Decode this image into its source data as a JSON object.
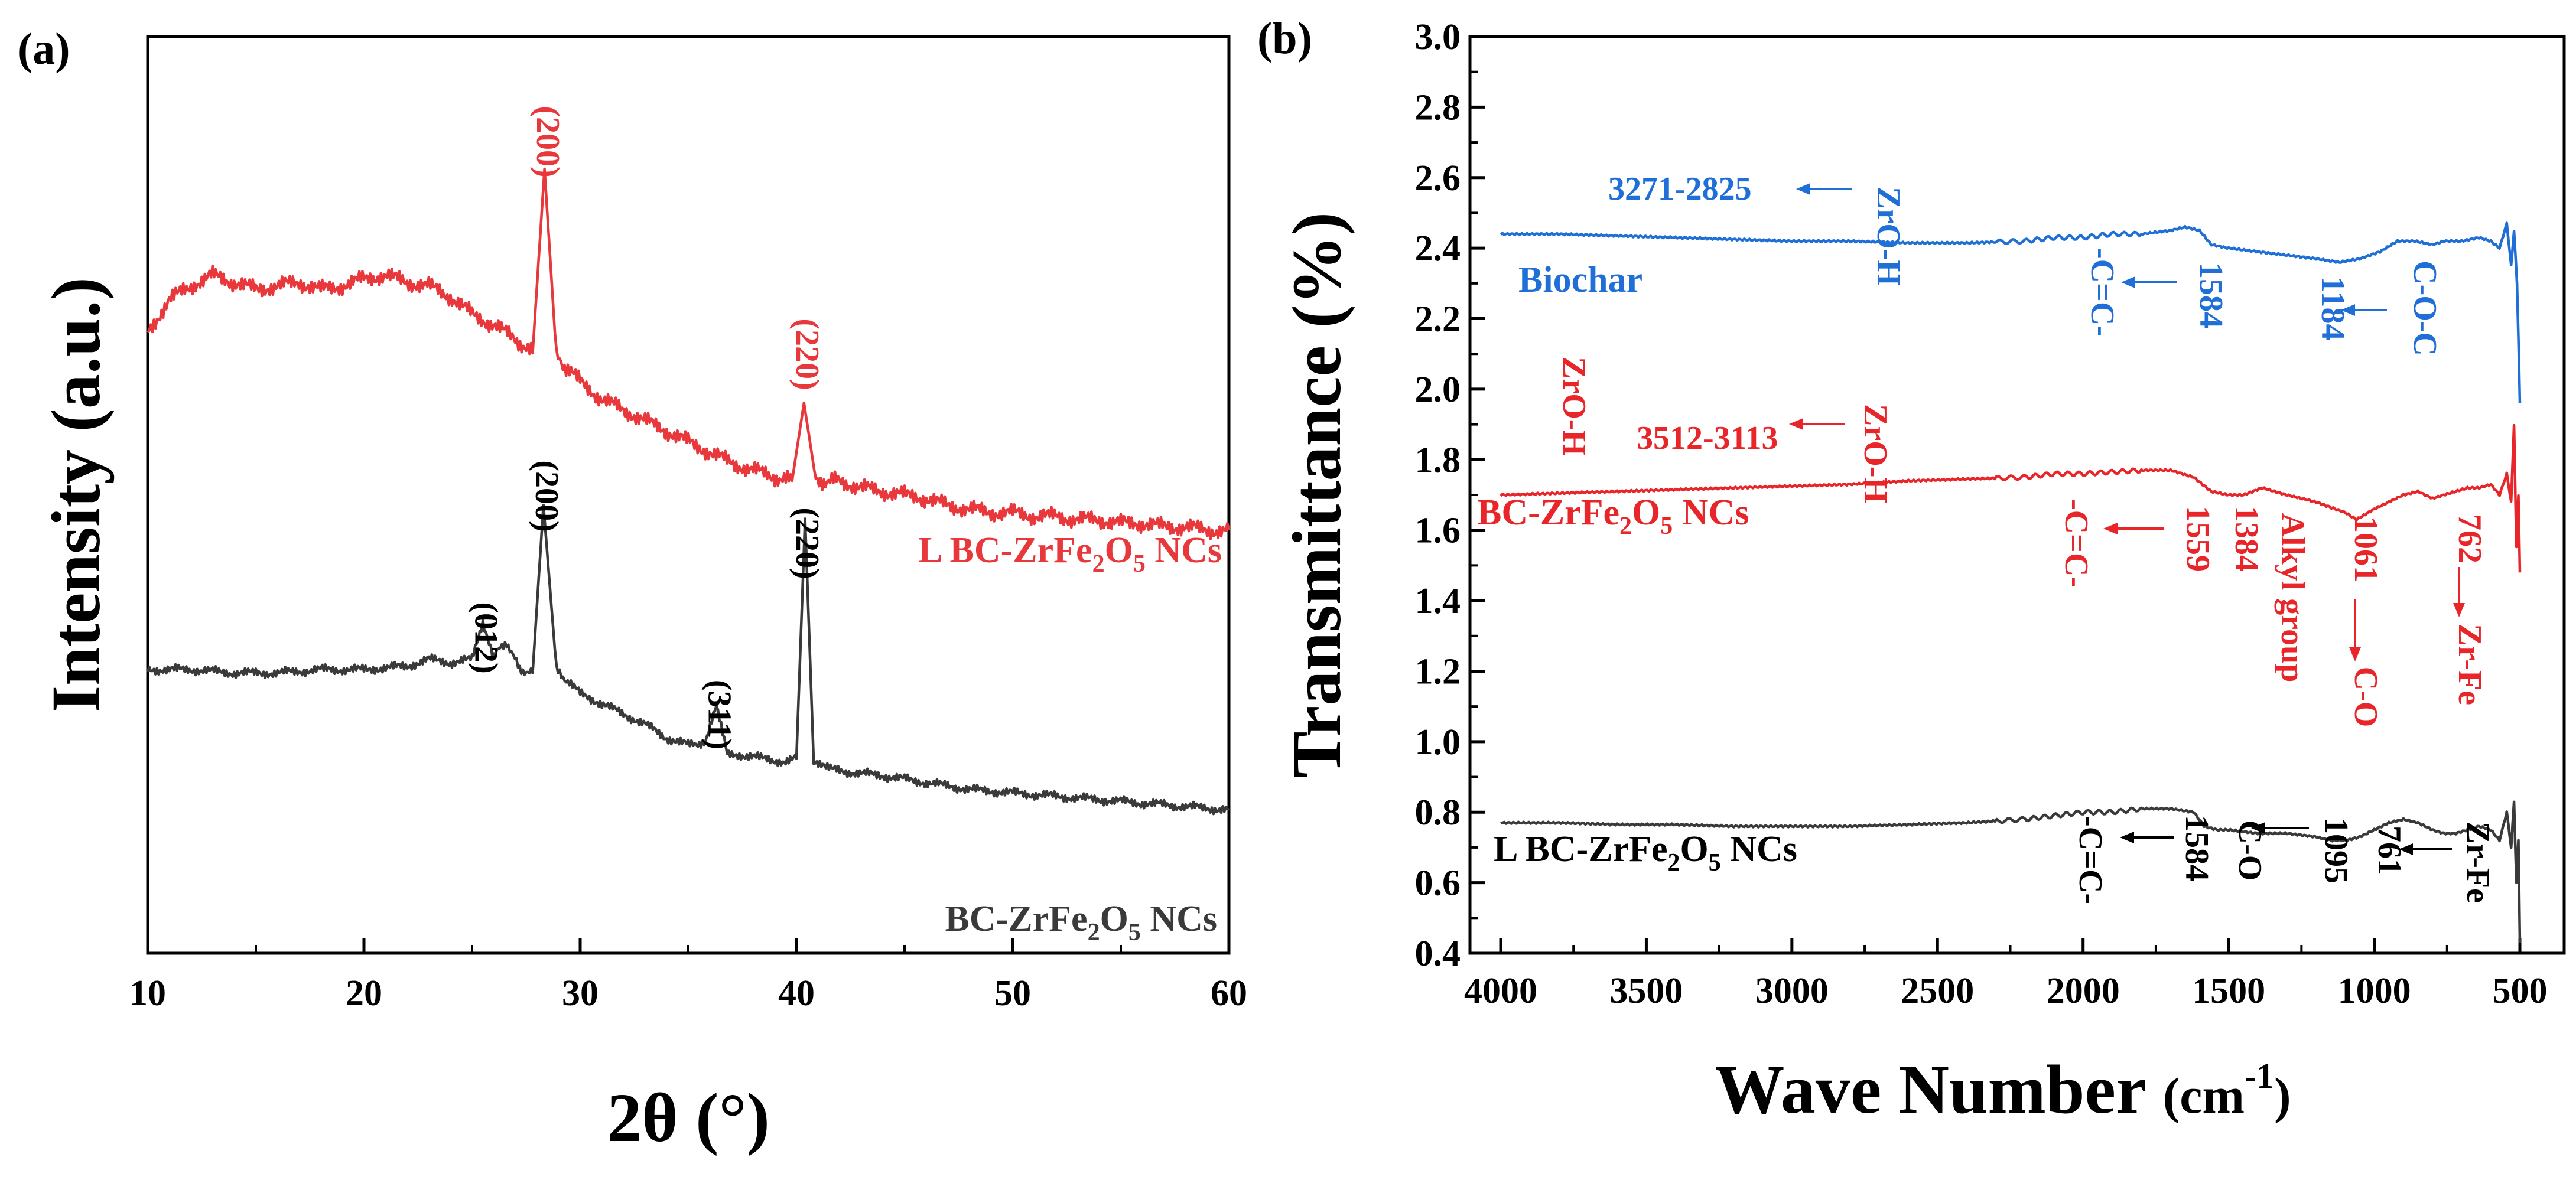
{
  "chart_data": [
    {
      "panel": "(a)",
      "type": "line",
      "title": "",
      "xlabel": "2θ (°)",
      "ylabel": "Intensity (a.u.)",
      "xlim": [
        10,
        60
      ],
      "xticks": [
        "10",
        "20",
        "30",
        "40",
        "50",
        "60"
      ],
      "series": [
        {
          "name": "L BC-ZrFe2O5 NCs",
          "color": "#e8383b",
          "x": [
            10,
            11,
            12,
            13,
            14,
            15,
            16,
            17,
            18,
            19,
            20,
            21,
            22,
            23,
            24,
            25,
            26,
            27,
            27.8,
            28.35,
            28.9,
            29.5,
            30,
            31,
            32,
            33,
            34,
            35,
            36,
            37,
            38,
            39,
            39.8,
            40.35,
            40.9,
            42,
            43,
            44,
            45,
            46,
            47,
            48,
            49,
            50,
            51,
            52,
            53,
            54,
            55,
            56,
            57,
            58,
            59,
            60
          ],
          "y": [
            0.53,
            0.62,
            0.66,
            0.69,
            0.67,
            0.65,
            0.66,
            0.67,
            0.65,
            0.66,
            0.68,
            0.69,
            0.67,
            0.66,
            0.63,
            0.58,
            0.55,
            0.51,
            0.47,
            0.99,
            0.46,
            0.42,
            0.39,
            0.34,
            0.31,
            0.28,
            0.25,
            0.22,
            0.19,
            0.16,
            0.14,
            0.12,
            0.11,
            0.33,
            0.11,
            0.11,
            0.09,
            0.08,
            0.07,
            0.06,
            0.04,
            0.03,
            0.02,
            0.02,
            0.01,
            0.01,
            0.0,
            0.0,
            -0.01,
            -0.01,
            -0.02,
            -0.02,
            -0.03,
            -0.03
          ]
        },
        {
          "name": "BC-ZrFe2O5 NCs",
          "color": "#3a3a3a",
          "x": [
            10,
            12,
            14,
            16,
            18,
            20,
            22,
            23,
            24,
            25,
            25.5,
            26,
            26.6,
            27.2,
            27.8,
            28.3,
            28.9,
            29.5,
            30,
            31,
            32,
            33,
            34,
            35,
            35.8,
            36.3,
            36.8,
            37.5,
            38.5,
            39.5,
            40.0,
            40.4,
            40.8,
            41.5,
            42.5,
            44,
            46,
            48,
            50,
            52,
            54,
            56,
            58,
            60
          ],
          "y": [
            0.58,
            0.58,
            0.57,
            0.57,
            0.58,
            0.58,
            0.59,
            0.61,
            0.6,
            0.61,
            0.72,
            0.62,
            0.66,
            0.58,
            0.57,
            1.06,
            0.58,
            0.54,
            0.51,
            0.48,
            0.45,
            0.42,
            0.38,
            0.36,
            0.37,
            0.47,
            0.34,
            0.33,
            0.32,
            0.31,
            0.32,
            1.02,
            0.31,
            0.29,
            0.28,
            0.27,
            0.25,
            0.23,
            0.22,
            0.21,
            0.2,
            0.19,
            0.18,
            0.17
          ]
        }
      ],
      "peak_labels": [
        {
          "text": "(200)",
          "x": 28.35,
          "series": "L BC-ZrFe2O5 NCs"
        },
        {
          "text": "(220)",
          "x": 40.35,
          "series": "L BC-ZrFe2O5 NCs"
        },
        {
          "text": "(012)",
          "x": 25.5,
          "series": "BC-ZrFe2O5 NCs"
        },
        {
          "text": "(200)",
          "x": 28.3,
          "series": "BC-ZrFe2O5 NCs"
        },
        {
          "text": "(311)",
          "x": 36.3,
          "series": "BC-ZrFe2O5 NCs"
        },
        {
          "text": "(220)",
          "x": 40.35,
          "series": "BC-ZrFe2O5 NCs"
        }
      ]
    },
    {
      "panel": "(b)",
      "type": "line",
      "title": "",
      "xlabel": "Wave Number (cm-1)",
      "ylabel": "Transmittance (%)",
      "xlim": [
        4000,
        500
      ],
      "ylim": [
        0.4,
        3.0
      ],
      "xticks": [
        "4000",
        "3500",
        "3000",
        "2500",
        "2000",
        "1500",
        "1000",
        "500"
      ],
      "yticks": [
        "0.4",
        "0.6",
        "0.8",
        "1.0",
        "1.2",
        "1.4",
        "1.6",
        "1.8",
        "2.0",
        "2.2",
        "2.4",
        "2.6",
        "2.8",
        "3.0"
      ],
      "series": [
        {
          "name": "Biochar",
          "color": "#1f6fd6",
          "x": [
            4000,
            3800,
            3600,
            3400,
            3200,
            3000,
            2800,
            2600,
            2400,
            2200,
            2100,
            2000,
            1900,
            1800,
            1700,
            1650,
            1600,
            1560,
            1500,
            1400,
            1300,
            1200,
            1120,
            1050,
            980,
            920,
            860,
            800,
            760,
            700,
            640,
            600,
            570,
            545,
            530,
            520,
            510,
            505,
            500
          ],
          "y": [
            2.44,
            2.44,
            2.435,
            2.43,
            2.425,
            2.42,
            2.42,
            2.415,
            2.415,
            2.42,
            2.43,
            2.43,
            2.44,
            2.44,
            2.45,
            2.46,
            2.45,
            2.41,
            2.4,
            2.39,
            2.38,
            2.37,
            2.36,
            2.37,
            2.39,
            2.42,
            2.42,
            2.41,
            2.42,
            2.42,
            2.43,
            2.42,
            2.4,
            2.47,
            2.35,
            2.45,
            2.3,
            2.15,
            1.96
          ]
        },
        {
          "name": "BC-ZrFe2O5 NCs",
          "color": "#e8262a",
          "x": [
            4000,
            3800,
            3600,
            3400,
            3200,
            3000,
            2800,
            2600,
            2400,
            2200,
            2100,
            2000,
            1900,
            1800,
            1700,
            1620,
            1560,
            1500,
            1450,
            1384,
            1300,
            1200,
            1100,
            1061,
            1000,
            950,
            900,
            850,
            800,
            762,
            720,
            680,
            640,
            600,
            570,
            545,
            530,
            520,
            512,
            505,
            500
          ],
          "y": [
            1.7,
            1.705,
            1.71,
            1.715,
            1.72,
            1.725,
            1.73,
            1.74,
            1.745,
            1.75,
            1.76,
            1.76,
            1.765,
            1.77,
            1.77,
            1.75,
            1.71,
            1.7,
            1.7,
            1.72,
            1.7,
            1.68,
            1.65,
            1.63,
            1.66,
            1.68,
            1.7,
            1.71,
            1.69,
            1.7,
            1.71,
            1.72,
            1.72,
            1.73,
            1.7,
            1.76,
            1.68,
            1.9,
            1.55,
            1.7,
            1.48
          ]
        },
        {
          "name": "L BC-ZrFe2O5 NCs",
          "color": "#3a3a3a",
          "x": [
            4000,
            3800,
            3600,
            3400,
            3200,
            3000,
            2800,
            2600,
            2400,
            2200,
            2100,
            2000,
            1900,
            1800,
            1700,
            1620,
            1584,
            1540,
            1500,
            1400,
            1300,
            1200,
            1150,
            1095,
            1050,
            1000,
            950,
            900,
            850,
            800,
            761,
            720,
            680,
            640,
            600,
            570,
            545,
            530,
            520,
            512,
            505,
            500
          ],
          "y": [
            0.77,
            0.77,
            0.765,
            0.765,
            0.76,
            0.76,
            0.76,
            0.765,
            0.77,
            0.78,
            0.79,
            0.8,
            0.8,
            0.81,
            0.81,
            0.8,
            0.76,
            0.75,
            0.75,
            0.74,
            0.74,
            0.73,
            0.72,
            0.72,
            0.73,
            0.75,
            0.77,
            0.78,
            0.77,
            0.75,
            0.74,
            0.74,
            0.75,
            0.76,
            0.75,
            0.72,
            0.8,
            0.7,
            0.83,
            0.6,
            0.72,
            0.43
          ]
        }
      ],
      "series_labels": [
        {
          "text": "Biochar",
          "series": "Biochar"
        },
        {
          "text": "BC-ZrFe2O5 NCs",
          "series": "BC-ZrFe2O5 NCs"
        },
        {
          "text": "L BC-ZrFe2O5 NCs",
          "series": "L BC-ZrFe2O5 NCs"
        }
      ],
      "annotations": [
        {
          "text": "3271-2825",
          "series": "Biochar"
        },
        {
          "text": "ZrO-H",
          "series": "Biochar"
        },
        {
          "text": "-C=C-",
          "series": "Biochar"
        },
        {
          "text": "1584",
          "series": "Biochar"
        },
        {
          "text": "1184",
          "series": "Biochar"
        },
        {
          "text": "C-O-C",
          "series": "Biochar"
        },
        {
          "text": "ZrO-H",
          "series": "BC-ZrFe2O5 NCs"
        },
        {
          "text": "3512-3113",
          "series": "BC-ZrFe2O5 NCs"
        },
        {
          "text": "ZrO-H",
          "series": "BC-ZrFe2O5 NCs"
        },
        {
          "text": "-C=C-",
          "series": "BC-ZrFe2O5 NCs"
        },
        {
          "text": "1559",
          "series": "BC-ZrFe2O5 NCs"
        },
        {
          "text": "1384",
          "series": "BC-ZrFe2O5 NCs"
        },
        {
          "text": "Alkyl group",
          "series": "BC-ZrFe2O5 NCs"
        },
        {
          "text": "1061",
          "series": "BC-ZrFe2O5 NCs"
        },
        {
          "text": "C-O",
          "series": "BC-ZrFe2O5 NCs"
        },
        {
          "text": "762",
          "series": "BC-ZrFe2O5 NCs"
        },
        {
          "text": "Zr-Fe",
          "series": "BC-ZrFe2O5 NCs"
        },
        {
          "text": "-C=C-",
          "series": "L BC-ZrFe2O5 NCs"
        },
        {
          "text": "1584",
          "series": "L BC-ZrFe2O5 NCs"
        },
        {
          "text": "C-O",
          "series": "L BC-ZrFe2O5 NCs"
        },
        {
          "text": "1095",
          "series": "L BC-ZrFe2O5 NCs"
        },
        {
          "text": "761",
          "series": "L BC-ZrFe2O5 NCs"
        },
        {
          "text": "Zr-Fe",
          "series": "L BC-ZrFe2O5 NCs"
        }
      ]
    }
  ],
  "labels": {
    "a_series_top": {
      "pre": "L BC-ZrFe",
      "sub1": "2",
      "mid": "O",
      "sub2": "5",
      "post": " NCs"
    },
    "a_series_bottom": {
      "pre": "BC-ZrFe",
      "sub1": "2",
      "mid": "O",
      "sub2": "5",
      "post": " NCs"
    },
    "b_series_mid": {
      "pre": "BC-ZrFe",
      "sub1": "2",
      "mid": "O",
      "sub2": "5",
      "post": " NCs"
    },
    "b_series_bottom": {
      "pre": "L BC-ZrFe",
      "sub1": "2",
      "mid": "O",
      "sub2": "5",
      "post": " NCs"
    },
    "b_xlabel": {
      "pre": "Wave Number ",
      "unit": "(cm",
      "sup": "-1",
      "close": ")"
    }
  }
}
